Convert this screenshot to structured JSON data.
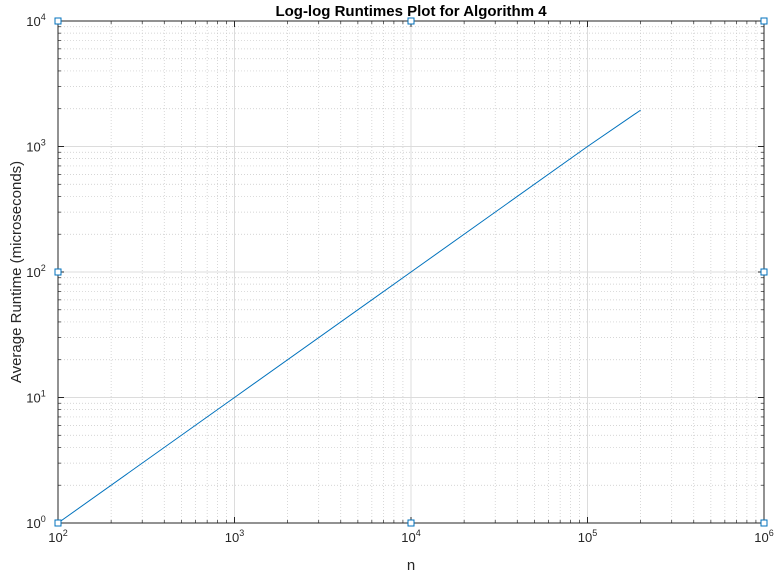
{
  "chart_data": {
    "type": "line",
    "title": "Log-log Runtimes Plot for Algorithm 4",
    "xlabel": "n",
    "ylabel": "Average Runtime (microseconds)",
    "xscale": "log",
    "yscale": "log",
    "xlim": [
      100,
      1000000
    ],
    "ylim": [
      1,
      10000
    ],
    "grid": true,
    "minor_grid": true,
    "x_ticks": [
      {
        "value": 100,
        "base": "10",
        "exp": "2"
      },
      {
        "value": 1000,
        "base": "10",
        "exp": "3"
      },
      {
        "value": 10000,
        "base": "10",
        "exp": "4"
      },
      {
        "value": 100000,
        "base": "10",
        "exp": "5"
      },
      {
        "value": 1000000,
        "base": "10",
        "exp": "6"
      }
    ],
    "y_ticks": [
      {
        "value": 1,
        "base": "10",
        "exp": "0"
      },
      {
        "value": 10,
        "base": "10",
        "exp": "1"
      },
      {
        "value": 100,
        "base": "10",
        "exp": "2"
      },
      {
        "value": 1000,
        "base": "10",
        "exp": "3"
      },
      {
        "value": 10000,
        "base": "10",
        "exp": "4"
      }
    ],
    "series": [
      {
        "color": "#0072bd",
        "x": [
          100,
          1000,
          10000,
          100000,
          200000
        ],
        "y": [
          1,
          10,
          100,
          1000,
          1950
        ]
      }
    ],
    "markers": {
      "color": "#0072bd",
      "shape": "square",
      "points": [
        {
          "x": 100,
          "y": 10000
        },
        {
          "x": 10000,
          "y": 10000
        },
        {
          "x": 1000000,
          "y": 10000
        },
        {
          "x": 100,
          "y": 100
        },
        {
          "x": 1000000,
          "y": 100
        },
        {
          "x": 100,
          "y": 1
        },
        {
          "x": 10000,
          "y": 1
        },
        {
          "x": 1000000,
          "y": 1
        }
      ]
    }
  }
}
